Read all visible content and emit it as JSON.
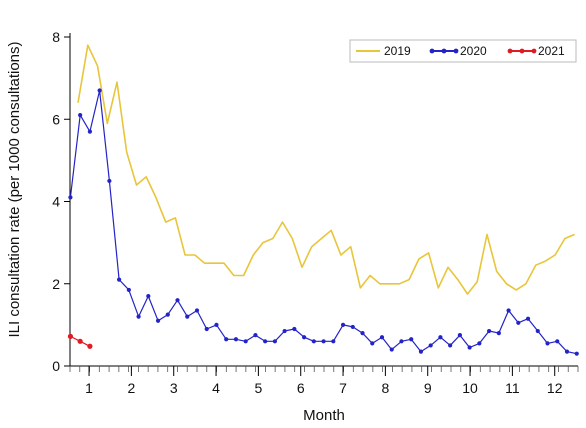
{
  "chart_data": {
    "type": "line",
    "title": "",
    "xlabel": "Month",
    "ylabel": "ILI consultation rate (per 1000 consultations)",
    "ylim": [
      0,
      8
    ],
    "xlim": [
      0.55,
      12.55
    ],
    "yticks": [
      0,
      2,
      4,
      6,
      8
    ],
    "xticks": [
      1,
      2,
      3,
      4,
      5,
      6,
      7,
      8,
      9,
      10,
      11,
      12
    ],
    "grid": false,
    "legend_position": "top-right",
    "series": [
      {
        "name": "2019",
        "color": "#e8c53a",
        "marker": "none",
        "x": [
          0.74,
          0.97,
          1.2,
          1.43,
          1.66,
          1.89,
          2.12,
          2.35,
          2.58,
          2.81,
          3.04,
          3.27,
          3.5,
          3.73,
          3.96,
          4.19,
          4.42,
          4.65,
          4.88,
          5.11,
          5.34,
          5.57,
          5.8,
          6.03,
          6.26,
          6.49,
          6.72,
          6.95,
          7.18,
          7.41,
          7.64,
          7.87,
          8.1,
          8.33,
          8.56,
          8.79,
          9.02,
          9.25,
          9.48,
          9.71,
          9.94,
          10.17,
          10.4,
          10.63,
          10.86,
          11.09,
          11.32,
          11.55,
          11.78,
          12.01,
          12.24,
          12.47
        ],
        "y": [
          6.4,
          7.8,
          7.3,
          5.9,
          6.9,
          5.2,
          4.4,
          4.6,
          4.1,
          3.5,
          3.6,
          2.7,
          2.7,
          2.5,
          2.5,
          2.5,
          2.2,
          2.2,
          2.7,
          3.0,
          3.1,
          3.5,
          3.1,
          2.4,
          2.9,
          3.1,
          3.3,
          2.7,
          2.9,
          1.9,
          2.2,
          2.0,
          2.0,
          2.0,
          2.1,
          2.6,
          2.75,
          1.9,
          2.4,
          2.1,
          1.75,
          2.05,
          3.2,
          2.3,
          2.0,
          1.85,
          2.0,
          2.45,
          2.55,
          2.7,
          3.1,
          3.2
        ]
      },
      {
        "name": "2020",
        "color": "#2323c8",
        "marker": "dot",
        "x": [
          0.56,
          0.79,
          1.02,
          1.25,
          1.48,
          1.71,
          1.94,
          2.17,
          2.4,
          2.63,
          2.86,
          3.09,
          3.32,
          3.55,
          3.78,
          4.01,
          4.24,
          4.47,
          4.7,
          4.93,
          5.16,
          5.39,
          5.62,
          5.85,
          6.08,
          6.31,
          6.54,
          6.77,
          7.0,
          7.23,
          7.46,
          7.69,
          7.92,
          8.15,
          8.38,
          8.61,
          8.84,
          9.07,
          9.3,
          9.53,
          9.76,
          9.99,
          10.22,
          10.45,
          10.68,
          10.91,
          11.14,
          11.37,
          11.6,
          11.83,
          12.06,
          12.29,
          12.52
        ],
        "y": [
          4.1,
          6.1,
          5.7,
          6.7,
          4.5,
          2.1,
          1.85,
          1.2,
          1.7,
          1.1,
          1.25,
          1.6,
          1.2,
          1.35,
          0.9,
          1.0,
          0.65,
          0.65,
          0.6,
          0.75,
          0.6,
          0.6,
          0.85,
          0.9,
          0.7,
          0.6,
          0.6,
          0.6,
          1.0,
          0.95,
          0.8,
          0.55,
          0.7,
          0.4,
          0.6,
          0.65,
          0.35,
          0.5,
          0.7,
          0.5,
          0.75,
          0.45,
          0.55,
          0.85,
          0.8,
          1.35,
          1.05,
          1.15,
          0.85,
          0.55,
          0.6,
          0.35,
          0.3
        ]
      },
      {
        "name": "2021",
        "color": "#e01b24",
        "marker": "dot",
        "x": [
          0.56,
          0.79,
          1.02
        ],
        "y": [
          0.72,
          0.6,
          0.48
        ]
      }
    ]
  }
}
